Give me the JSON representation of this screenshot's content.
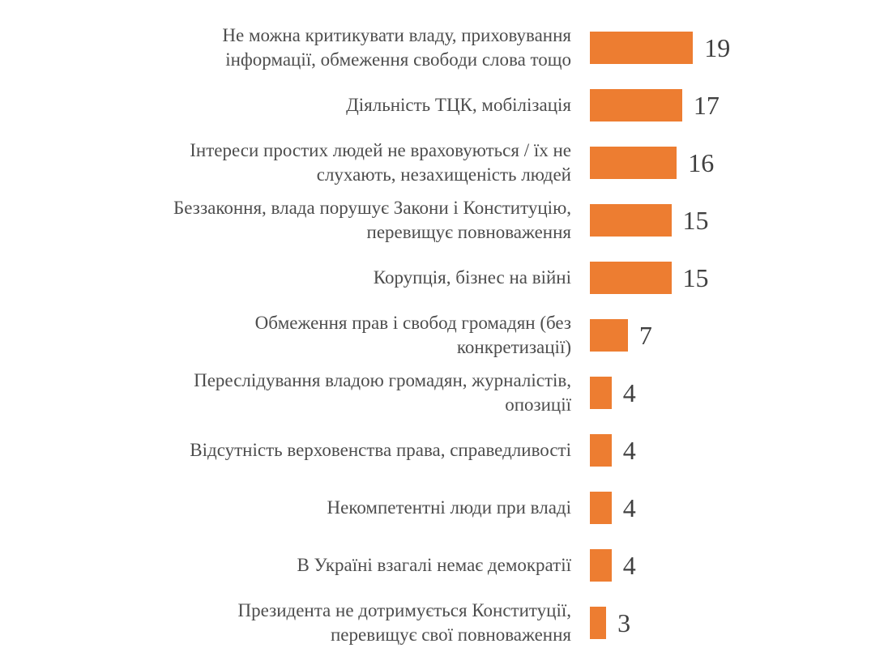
{
  "chart_data": {
    "type": "bar",
    "orientation": "horizontal",
    "title": "",
    "xlabel": "",
    "ylabel": "",
    "axes": "hidden",
    "grid": false,
    "legend": "none",
    "value_labels_position": "outside-end",
    "bar_color": "#ED7D31",
    "label_color": "#4d4d4d",
    "value_color": "#404040",
    "xlim": [
      0,
      20
    ],
    "categories": [
      "Не можна критикувати владу, приховування інформації, обмеження свободи слова тощо",
      "Діяльність ТЦК, мобілізація",
      "Інтереси простих людей не враховуються / їх не слухають, незахищеність людей",
      "Беззаконня, влада порушує Закони і Конституцію, перевищує повноваження",
      "Корупція, бізнес на війні",
      "Обмеження прав і свобод громадян (без конкретизації)",
      "Переслідування владою громадян, журналістів, опозиції",
      "Відсутність верховенства права, справедливості",
      "Некомпетентні люди при владі",
      "В Україні взагалі немає демократії",
      "Президента не дотримується Конституції, перевищує свої повноваження"
    ],
    "values": [
      19,
      17,
      16,
      15,
      15,
      7,
      4,
      4,
      4,
      4,
      3
    ],
    "rows": [
      {
        "lines": [
          "Не можна критикувати владу, приховування",
          "інформації, обмеження свободи слова тощо"
        ],
        "value": 19
      },
      {
        "lines": [
          "Діяльність ТЦК, мобілізація"
        ],
        "value": 17
      },
      {
        "lines": [
          "Інтереси простих людей не враховуються / їх не",
          "слухають, незахищеність людей"
        ],
        "value": 16
      },
      {
        "lines": [
          "Беззаконня, влада порушує Закони і Конституцію,",
          "перевищує повноваження"
        ],
        "value": 15
      },
      {
        "lines": [
          "Корупція, бізнес на війні"
        ],
        "value": 15
      },
      {
        "lines": [
          "Обмеження прав і свобод громадян (без",
          "конкретизації)"
        ],
        "value": 7
      },
      {
        "lines": [
          "Переслідування владою громадян, журналістів,",
          "опозиції"
        ],
        "value": 4
      },
      {
        "lines": [
          "Відсутність верховенства права, справедливості"
        ],
        "value": 4
      },
      {
        "lines": [
          "Некомпетентні люди при владі"
        ],
        "value": 4
      },
      {
        "lines": [
          "В Україні взагалі немає демократії"
        ],
        "value": 4
      },
      {
        "lines": [
          "Президента не дотримується Конституції,",
          "перевищує свої повноваження"
        ],
        "value": 3
      }
    ]
  }
}
